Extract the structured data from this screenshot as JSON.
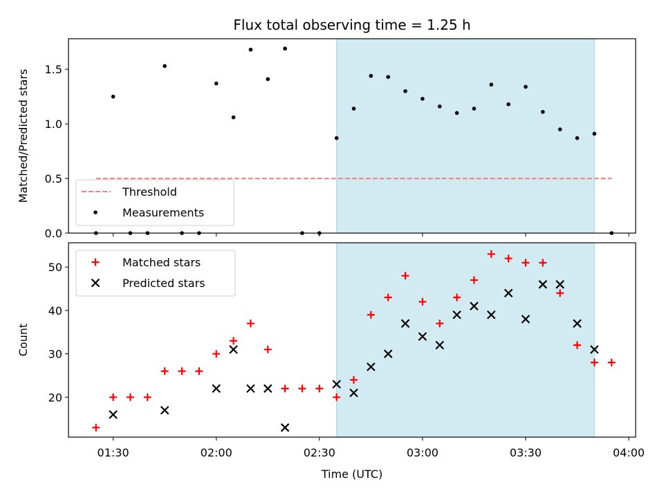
{
  "title": "Flux total observing time = 1.25 h",
  "x_axis": {
    "label": "Time (UTC)",
    "ticks": [
      "01:30",
      "02:00",
      "02:30",
      "03:00",
      "03:30",
      "04:00"
    ]
  },
  "colors": {
    "threshold": "#f08080",
    "measurements": "#000000",
    "matched": "#ff0000",
    "predicted": "#000000",
    "shade": "#add8e6"
  },
  "chart_data": [
    {
      "type": "scatter",
      "ylabel": "Matched/Predicted stars",
      "xlim": [
        "01:17",
        "04:02"
      ],
      "ylim": [
        0,
        1.78
      ],
      "y_ticks": [
        "0.0",
        "0.5",
        "1.0",
        "1.5"
      ],
      "shaded_span": [
        "02:35",
        "03:50"
      ],
      "threshold": {
        "name": "Threshold",
        "y": 0.5,
        "x_range": [
          "01:25",
          "03:55"
        ]
      },
      "series": [
        {
          "name": "Measurements",
          "x": [
            "01:25",
            "01:30",
            "01:35",
            "01:40",
            "01:45",
            "01:50",
            "01:55",
            "02:00",
            "02:05",
            "02:10",
            "02:15",
            "02:20",
            "02:25",
            "02:30",
            "02:35",
            "02:40",
            "02:45",
            "02:50",
            "02:55",
            "03:00",
            "03:05",
            "03:10",
            "03:15",
            "03:20",
            "03:25",
            "03:30",
            "03:35",
            "03:40",
            "03:45",
            "03:50",
            "03:55"
          ],
          "y": [
            0,
            1.25,
            0,
            0,
            1.53,
            0,
            0,
            1.37,
            1.06,
            1.68,
            1.41,
            1.69,
            0,
            0,
            0.87,
            1.14,
            1.44,
            1.43,
            1.3,
            1.23,
            1.16,
            1.1,
            1.14,
            1.36,
            1.18,
            1.34,
            1.11,
            0.95,
            0.87,
            0.91,
            0
          ]
        }
      ],
      "legend": {
        "position": "lower-left",
        "entries": [
          "Threshold",
          "Measurements"
        ]
      }
    },
    {
      "type": "scatter",
      "ylabel": "Count",
      "xlim": [
        "01:17",
        "04:02"
      ],
      "ylim": [
        10.8,
        55.6
      ],
      "y_ticks": [
        "20",
        "30",
        "40",
        "50"
      ],
      "shaded_span": [
        "02:35",
        "03:50"
      ],
      "series": [
        {
          "name": "Matched stars",
          "x": [
            "01:25",
            "01:30",
            "01:35",
            "01:40",
            "01:45",
            "01:50",
            "01:55",
            "02:00",
            "02:05",
            "02:10",
            "02:15",
            "02:20",
            "02:25",
            "02:30",
            "02:35",
            "02:40",
            "02:45",
            "02:50",
            "02:55",
            "03:00",
            "03:05",
            "03:10",
            "03:15",
            "03:20",
            "03:25",
            "03:30",
            "03:35",
            "03:40",
            "03:45",
            "03:50",
            "03:55"
          ],
          "y": [
            13,
            20,
            20,
            20,
            26,
            26,
            26,
            30,
            33,
            37,
            31,
            22,
            22,
            22,
            20,
            24,
            39,
            43,
            48,
            42,
            37,
            43,
            47,
            53,
            52,
            51,
            51,
            44,
            32,
            28,
            28
          ]
        },
        {
          "name": "Predicted stars",
          "x": [
            "01:30",
            "01:45",
            "02:00",
            "02:05",
            "02:10",
            "02:15",
            "02:20",
            "02:35",
            "02:40",
            "02:45",
            "02:50",
            "02:55",
            "03:00",
            "03:05",
            "03:10",
            "03:15",
            "03:20",
            "03:25",
            "03:30",
            "03:35",
            "03:40",
            "03:45",
            "03:50"
          ],
          "y": [
            16,
            17,
            22,
            31,
            22,
            22,
            13,
            23,
            21,
            27,
            30,
            37,
            34,
            32,
            39,
            41,
            39,
            44,
            38,
            46,
            46,
            37,
            31
          ]
        }
      ],
      "legend": {
        "position": "upper-left",
        "entries": [
          "Matched stars",
          "Predicted stars"
        ]
      }
    }
  ]
}
